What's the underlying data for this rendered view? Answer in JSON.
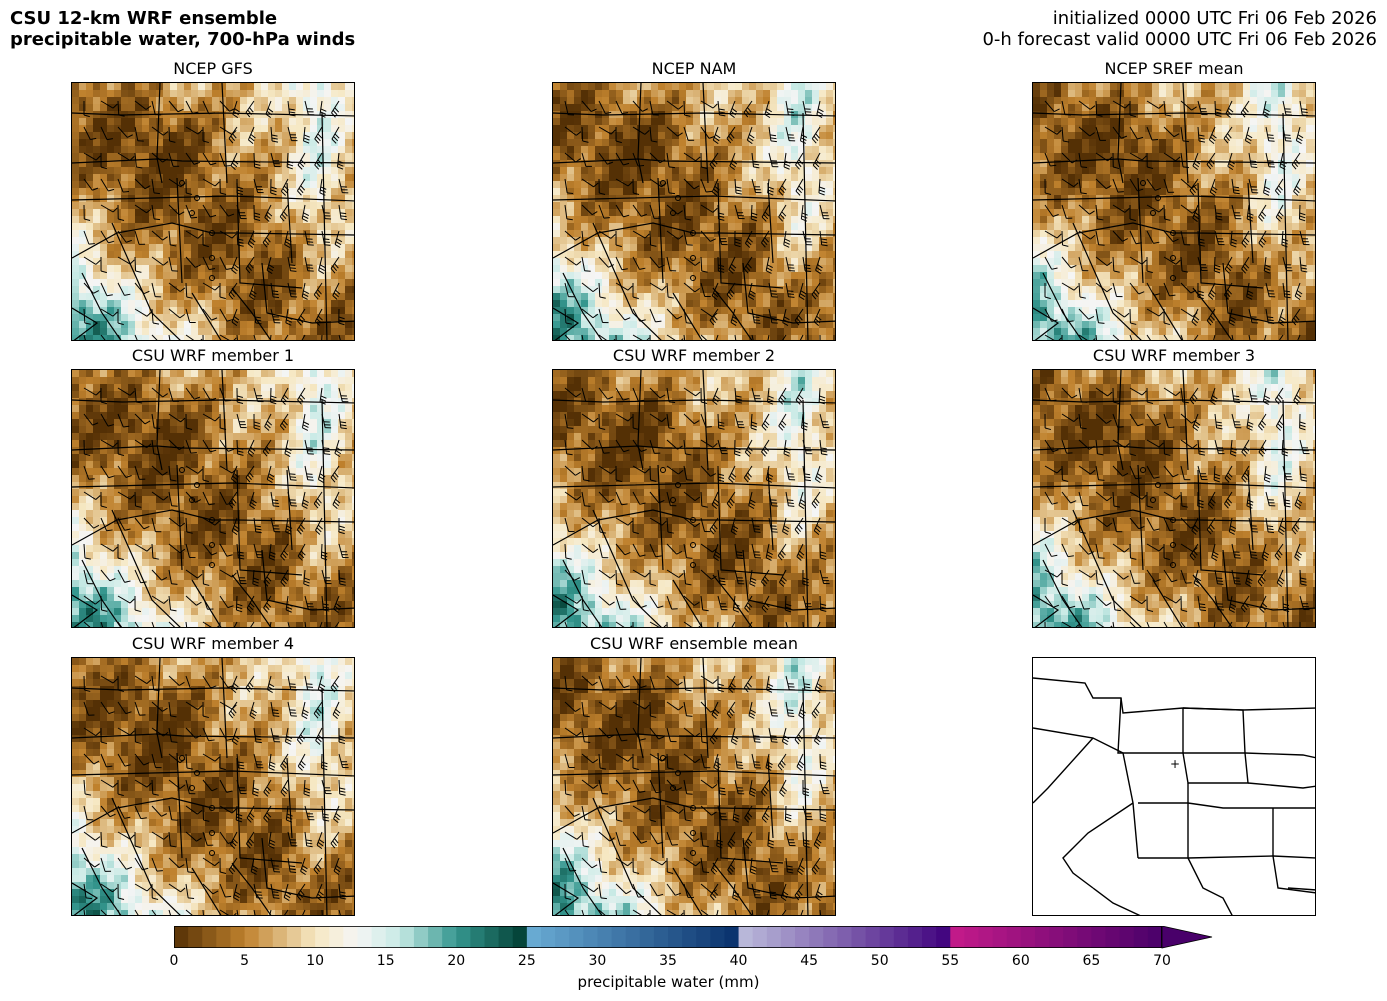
{
  "header": {
    "title_line1": "CSU 12-km WRF ensemble",
    "title_line2": "precipitable water, 700-hPa winds",
    "init_line": "initialized 0000 UTC Fri 06 Feb 2026",
    "valid_line": "0-h forecast valid 0000 UTC Fri 06 Feb 2026"
  },
  "panels": [
    {
      "title": "NCEP GFS"
    },
    {
      "title": "NCEP NAM"
    },
    {
      "title": "NCEP SREF mean"
    },
    {
      "title": "CSU WRF member 1"
    },
    {
      "title": "CSU WRF member 2"
    },
    {
      "title": "CSU WRF member 3"
    },
    {
      "title": "CSU WRF member 4"
    },
    {
      "title": "CSU WRF ensemble mean"
    },
    {
      "title": ""
    }
  ],
  "colorbar": {
    "label": "precipitable water (mm)",
    "ticks": [
      "0",
      "5",
      "10",
      "15",
      "20",
      "25",
      "30",
      "35",
      "40",
      "45",
      "50",
      "55",
      "60",
      "65",
      "70"
    ],
    "min": 0,
    "max": 70,
    "extend": "max",
    "colors": {
      "dry_dark": "#543005",
      "dry_mid": "#bf812d",
      "dry_light": "#f6e8c3",
      "neutral": "#f5f5f5",
      "moist_light": "#c7eae5",
      "moist_mid": "#35978f",
      "moist_dark": "#003c30",
      "blue_light": "#6baed6",
      "blue_dark": "#08306b",
      "purple_light": "#bcbddc",
      "purple_dark": "#3f007d",
      "magenta_light": "#c51b8a",
      "magenta_dark": "#49006a"
    }
  }
}
